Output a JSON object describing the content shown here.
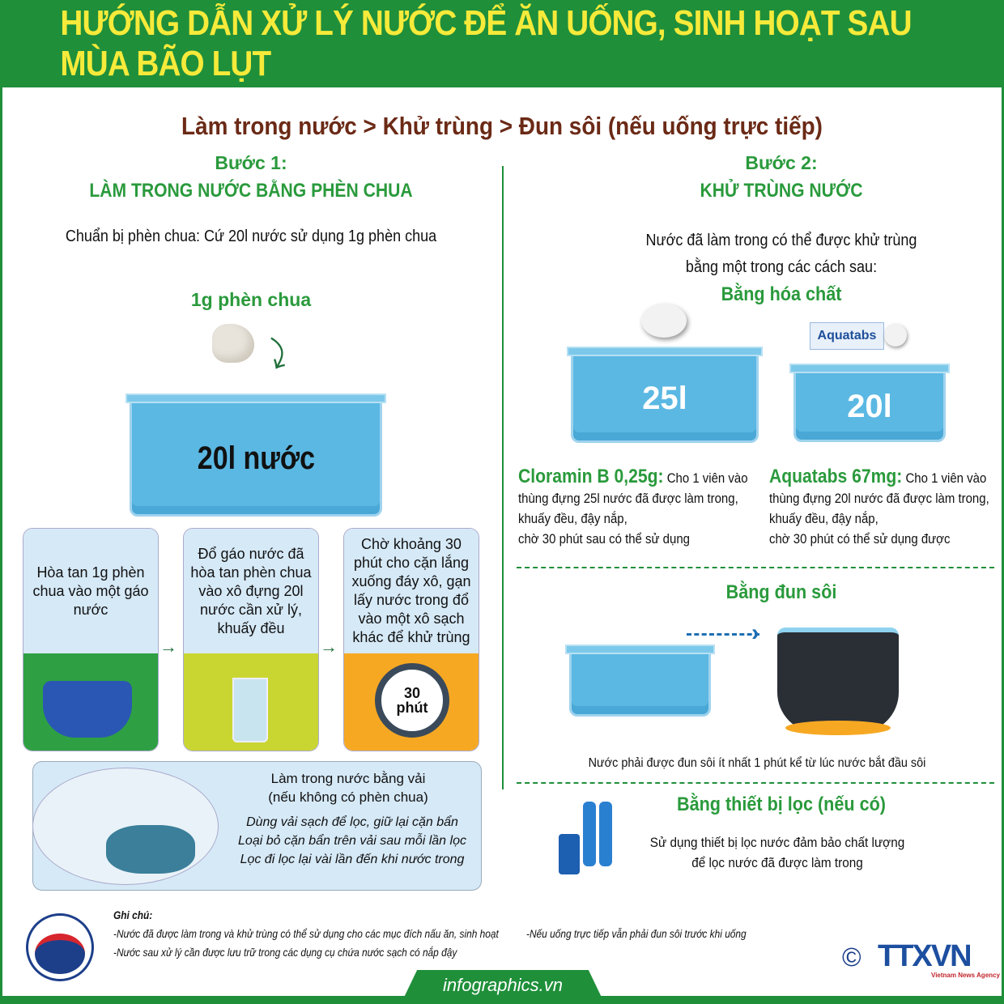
{
  "header": {
    "title": "HƯỚNG DẪN XỬ LÝ NƯỚC ĐỂ ĂN UỐNG, SINH HOẠT SAU MÙA BÃO LỤT"
  },
  "subtitle": "Làm trong nước > Khử trùng > Đun sôi (nếu uống trực tiếp)",
  "step1": {
    "label": "Bước 1:",
    "title": "LÀM TRONG NƯỚC BẰNG PHÈN CHUA",
    "prep": "Chuẩn bị phèn chua: Cứ 20l nước sử dụng 1g phèn chua",
    "alum_label": "1g phèn chua",
    "bucket_label": "20l nước",
    "steps": [
      {
        "text": "Hòa tan 1g phèn chua vào một gáo nước",
        "color": "#2ea043"
      },
      {
        "text": "Đổ gáo nước đã hòa tan phèn chua vào xô đựng 20l nước cần xử lý, khuấy đều",
        "color": "#c9d631"
      },
      {
        "text": "Chờ khoảng 30 phút cho cặn lắng xuống đáy xô, gạn lấy nước trong đổ vào một xô sạch khác để khử trùng",
        "color": "#f7a823"
      }
    ],
    "timer": {
      "number": "30",
      "unit": "phút"
    },
    "cloth": {
      "title": "Làm trong nước bằng vải",
      "subtitle": "(nếu không có phèn chua)",
      "lines": [
        "Dùng vải sạch để lọc, giữ lại cặn bẩn",
        "Loại bỏ cặn bẩn trên vải sau mỗi lần lọc",
        "Lọc đi lọc lại vài lần đến khi nước trong"
      ]
    }
  },
  "step2": {
    "label": "Bước 2:",
    "title": "KHỬ TRÙNG NƯỚC",
    "intro": [
      "Nước đã làm trong có thể được khử trùng",
      "bằng một trong các cách sau:"
    ],
    "chemical": {
      "title": "Bằng hóa chất",
      "buckets": [
        {
          "label": "25l"
        },
        {
          "label": "20l"
        }
      ],
      "package_label": "Aquatabs",
      "items": [
        {
          "name": "Cloramin B 0,25g:",
          "lines": [
            "Cho 1 viên vào",
            "thùng đựng 25l nước đã được làm trong,",
            "khuấy đều, đậy nắp,",
            "chờ 30 phút sau có thể sử dụng"
          ]
        },
        {
          "name": "Aquatabs 67mg:",
          "lines": [
            "Cho 1 viên vào",
            "thùng đựng 20l nước đã được làm trong,",
            "khuấy đều, đậy nắp,",
            "chờ 30 phút có thể sử dụng được"
          ]
        }
      ]
    },
    "boil": {
      "title": "Bằng đun sôi",
      "note": "Nước phải được đun sôi ít nhất 1 phút kể từ lúc nước bắt đầu sôi"
    },
    "filter": {
      "title": "Bằng thiết bị lọc (nếu có)",
      "lines": [
        "Sử dụng thiết bị lọc nước đảm bảo chất lượng",
        "để lọc nước đã được làm trong"
      ]
    }
  },
  "footer": {
    "notes_title": "Ghi chú:",
    "notes": [
      "-Nước đã được làm trong và khử trùng có thể sử dụng cho các mục đích nấu ăn, sinh hoạt",
      "-Nước sau xử lý cần được lưu trữ trong các dụng cụ chứa nước sạch có nắp đậy",
      "-Nếu uống trực tiếp vẫn phải đun sôi trước khi uống"
    ],
    "ministry_logo": "BỘ Y TẾ MINISTRY OF HEALTH",
    "site": "infographics.vn",
    "copyright": "©",
    "agency": "TTXVN",
    "agency_sub": "Vietnam News Agency"
  },
  "colors": {
    "primary_green": "#1f8f3a",
    "title_yellow": "#f6ea3a",
    "subtitle_brown": "#6b2a16",
    "water_blue": "#5bb8e3"
  }
}
